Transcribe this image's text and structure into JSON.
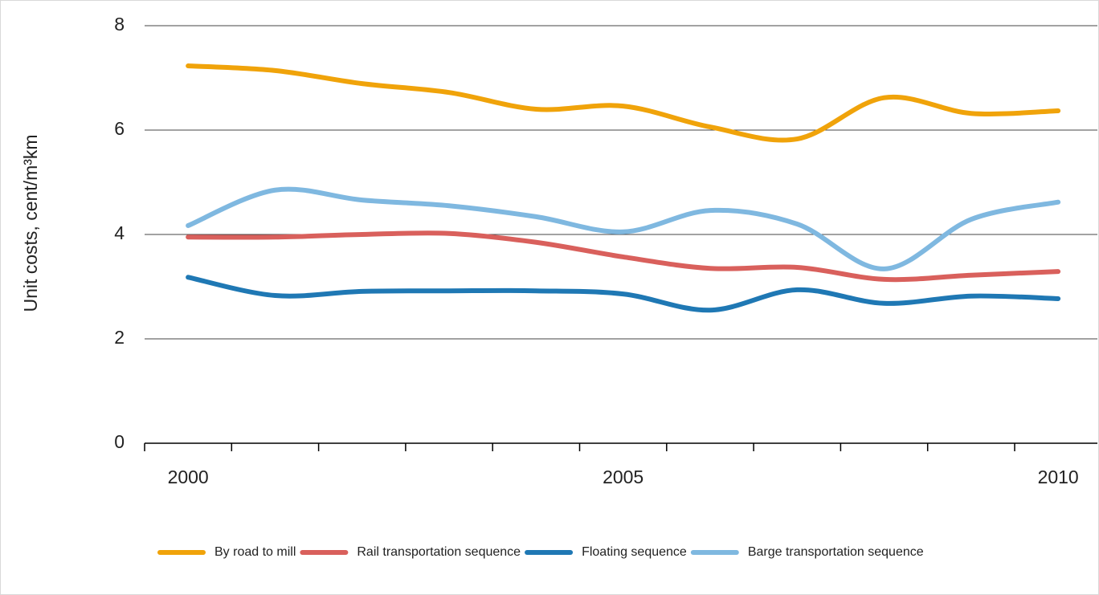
{
  "chart_data": {
    "type": "line",
    "y_label": "Unit costs, cent/m³km",
    "categories": [
      "2000",
      null,
      null,
      null,
      null,
      "2005",
      null,
      null,
      null,
      null,
      "2010"
    ],
    "series": [
      {
        "name": "By road to mill",
        "color": "#f0a30a",
        "values": [
          7.23,
          7.14,
          6.89,
          6.72,
          6.4,
          6.46,
          6.06,
          5.83,
          6.62,
          6.32,
          6.37
        ]
      },
      {
        "name": "Rail transportation sequence",
        "color": "#d9605c",
        "values": [
          3.95,
          3.95,
          4.0,
          4.02,
          3.85,
          3.57,
          3.35,
          3.37,
          3.14,
          3.22,
          3.29
        ]
      },
      {
        "name": "Floating sequence",
        "color": "#1f78b4",
        "values": [
          3.18,
          2.83,
          2.91,
          2.92,
          2.92,
          2.86,
          2.55,
          2.94,
          2.68,
          2.82,
          2.77
        ]
      },
      {
        "name": "Barge transportation sequence",
        "color": "#7fb8e0",
        "values": [
          4.17,
          4.85,
          4.66,
          4.55,
          4.34,
          4.05,
          4.46,
          4.2,
          3.34,
          4.29,
          4.62
        ]
      }
    ],
    "ylim": [
      0,
      8
    ],
    "yticks": [
      0,
      2,
      4,
      6,
      8
    ],
    "grid": true,
    "smooth": true,
    "legend": "bottom"
  }
}
